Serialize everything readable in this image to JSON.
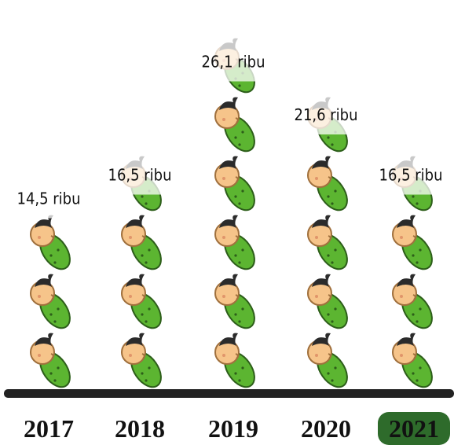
{
  "chart_data": {
    "type": "pictogram",
    "categories": [
      "2017",
      "2018",
      "2019",
      "2020",
      "2021"
    ],
    "values": [
      14.5,
      16.5,
      26.1,
      21.6,
      16.5
    ],
    "value_labels": [
      "14,5 ribu",
      "16,5 ribu",
      "26,1 ribu",
      "21,6 ribu",
      "16,5 ribu"
    ],
    "color": "#5cb531"
  }
}
